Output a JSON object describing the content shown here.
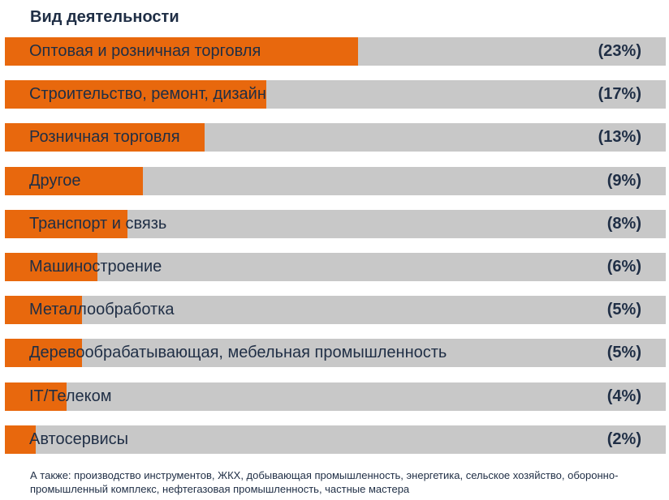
{
  "chart_data": {
    "type": "bar",
    "orientation": "horizontal",
    "title": "Вид деятельности",
    "categories": [
      "Оптовая и розничная торговля",
      "Строительство, ремонт, дизайн",
      "Розничная торговля",
      "Другое",
      "Транспорт и связь",
      "Машиностроение",
      "Металлообработка",
      "Деревообрабатывающая, мебельная промышленность",
      "IT/Телеком",
      "Автосервисы"
    ],
    "values": [
      23,
      17,
      13,
      9,
      8,
      6,
      5,
      5,
      4,
      2
    ],
    "value_labels": [
      "(23%)",
      "(17%)",
      "(13%)",
      "(9%)",
      "(8%)",
      "(6%)",
      "(5%)",
      "(5%)",
      "(4%)",
      "(2%)"
    ],
    "xlim": [
      0,
      43
    ],
    "unit": "%",
    "colors": {
      "fill": "#e8680d",
      "track": "#c8c8c8",
      "text": "#1f2e45"
    }
  },
  "footnote": "А также: производство инструментов, ЖКХ, добывающая промышленность, энергетика, сельское хозяйство, оборонно-промышленный комплекс, нефтегазовая промышленность, частные мастера"
}
